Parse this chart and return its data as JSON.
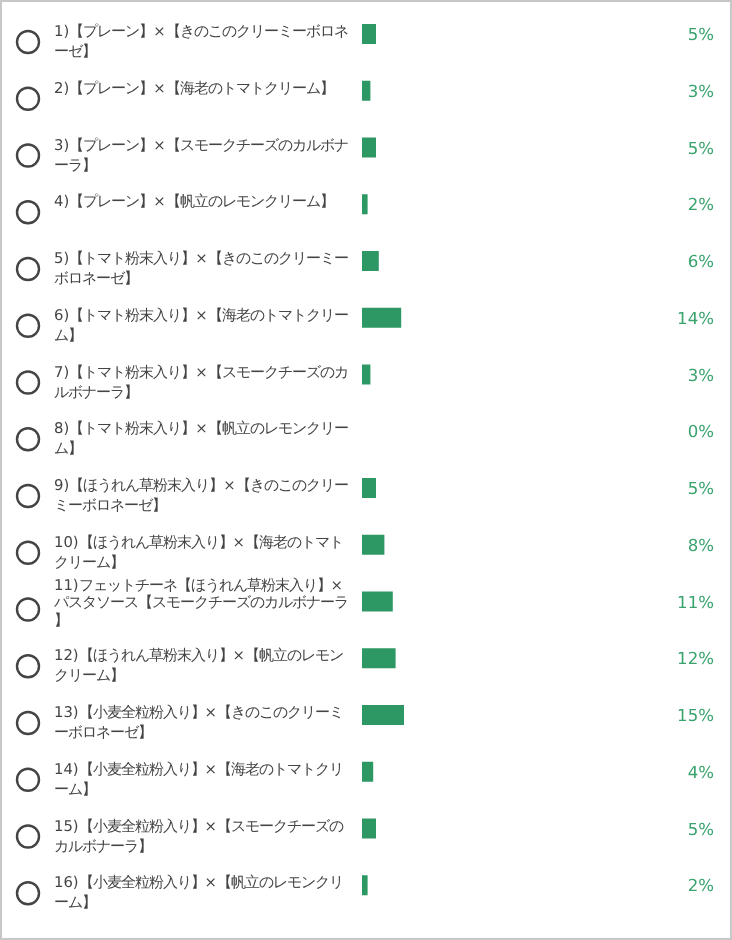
{
  "chart_data": {
    "type": "bar",
    "orientation": "horizontal",
    "categories": [
      "1)【プレーン】×【きのこのクリーミーボロネーゼ】",
      "2)【プレーン】×【海老のトマトクリーム】",
      "3)【プレーン】×【スモークチーズのカルボナーラ】",
      "4)【プレーン】×【帆立のレモンクリーム】",
      "5)【トマト粉末入り】×【きのこのクリーミーボロネーゼ】",
      "6)【トマト粉末入り】×【海老のトマトクリーム】",
      "7)【トマト粉末入り】×【スモークチーズのカルボナーラ】",
      "8)【トマト粉末入り】×【帆立のレモンクリーム】",
      "9)【ほうれん草粉末入り】×【きのこのクリーミーボロネーゼ】",
      "10)【ほうれん草粉末入り】×【海老のトマトクリーム】",
      "11)フェットチーネ【ほうれん草粉末入り】×パスタソース【スモークチーズのカルボナーラ】",
      "12)【ほうれん草粉末入り】×【帆立のレモンクリーム】",
      "13)【小麦全粒粉入り】×【きのこのクリーミーボロネーゼ】",
      "14)【小麦全粒粉入り】×【海老のトマトクリーム】",
      "15)【小麦全粒粉入り】×【スモークチーズのカルボナーラ】",
      "16)【小麦全粒粉入り】×【帆立のレモンクリーム】"
    ],
    "values": [
      5,
      3,
      5,
      2,
      6,
      14,
      3,
      0,
      5,
      8,
      11,
      12,
      15,
      4,
      5,
      2
    ],
    "value_labels": [
      "5%",
      "3%",
      "5%",
      "2%",
      "6%",
      "14%",
      "3%",
      "0%",
      "5%",
      "8%",
      "11%",
      "12%",
      "15%",
      "4%",
      "5%",
      "2%"
    ],
    "color": "#2e9865"
  }
}
